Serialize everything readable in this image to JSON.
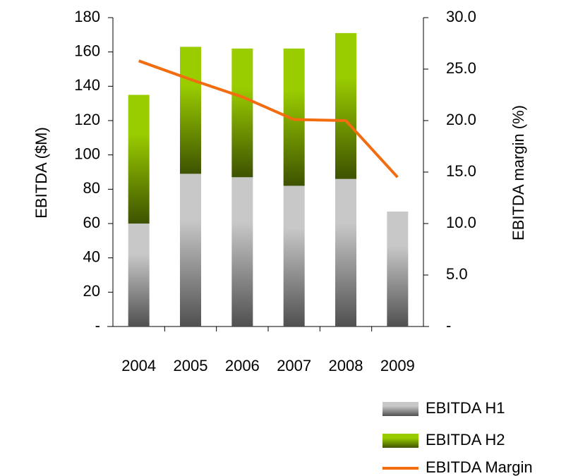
{
  "chart_data": {
    "type": "bar",
    "categories": [
      "2004",
      "2005",
      "2006",
      "2007",
      "2008",
      "2009"
    ],
    "y_label": "EBITDA ($M)",
    "y2_label": "EBITDA margin (%)",
    "series": [
      {
        "name": "EBITDA H1",
        "type": "bar",
        "color": "#c8c8c8",
        "values": [
          60,
          89,
          87,
          82,
          86,
          67
        ]
      },
      {
        "name": "EBITDA H2",
        "type": "bar",
        "color": "#9acd00",
        "values": [
          75,
          74,
          75,
          80,
          85,
          null
        ]
      },
      {
        "name": "EBITDA Margin",
        "type": "line",
        "axis": "y2",
        "color": "#f26c10",
        "values": [
          25.8,
          24.0,
          22.3,
          20.1,
          20.0,
          14.5
        ]
      }
    ],
    "ylim": [
      0,
      180
    ],
    "yticks": [
      {
        "value": 0,
        "label": "-"
      },
      20,
      40,
      60,
      80,
      100,
      120,
      140,
      160,
      180
    ],
    "y2lim": [
      0,
      30
    ],
    "y2ticks": [
      {
        "value": 0,
        "label": "-"
      },
      {
        "value": 5,
        "label": "5.0"
      },
      {
        "value": 10,
        "label": "10.0"
      },
      {
        "value": 15,
        "label": "15.0"
      },
      {
        "value": 20,
        "label": "20.0"
      },
      {
        "value": 25,
        "label": "25.0"
      },
      {
        "value": 30,
        "label": "30.0"
      }
    ],
    "stacked": true,
    "grid": false,
    "legend": "bottom-right"
  }
}
